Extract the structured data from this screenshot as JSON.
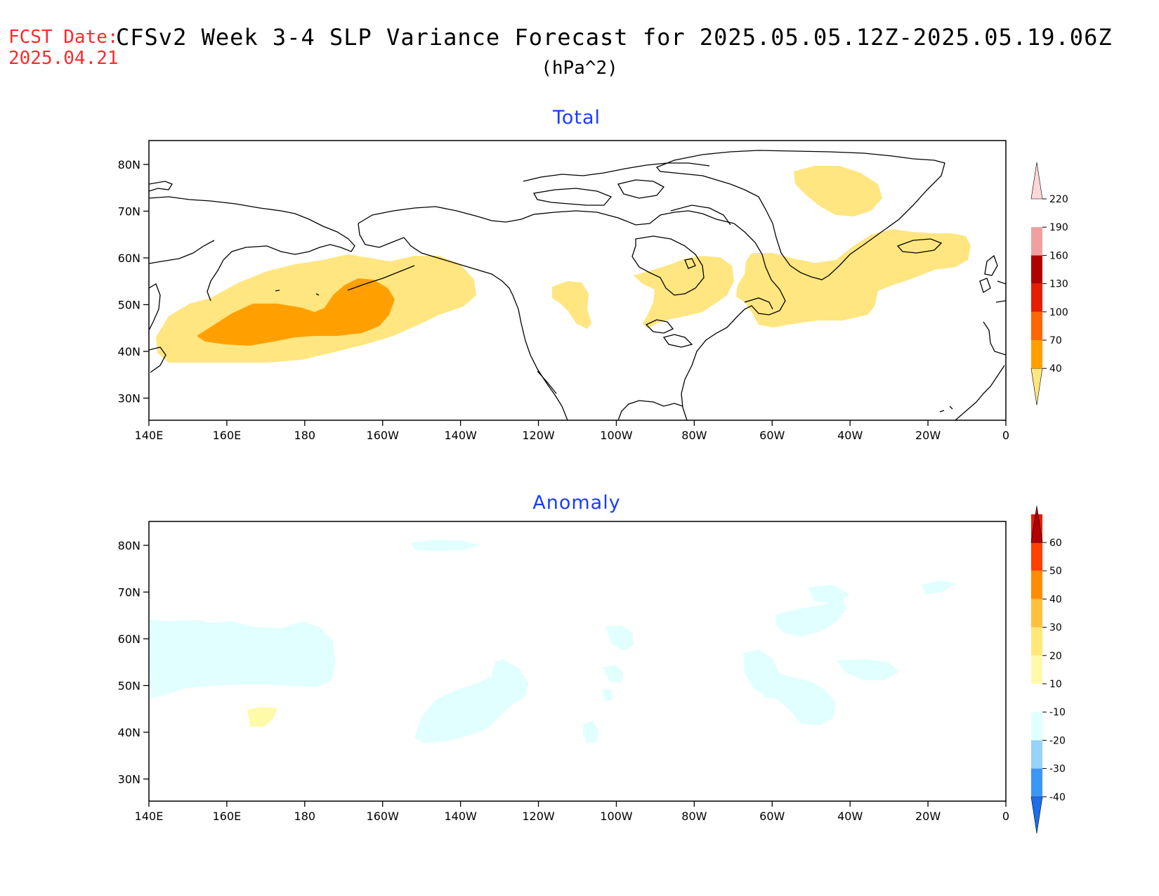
{
  "header": {
    "fcst_label": "FCST Date:",
    "fcst_date": "2025.04.21",
    "title": "CFSv2 Week 3-4 SLP Variance Forecast for 2025.05.05.12Z-2025.05.19.06Z",
    "units": "(hPa^2)"
  },
  "axes": {
    "lon_labels": [
      "140E",
      "160E",
      "180",
      "160W",
      "140W",
      "120W",
      "100W",
      "80W",
      "60W",
      "40W",
      "20W",
      "0"
    ],
    "lat_labels": [
      "80N",
      "70N",
      "60N",
      "50N",
      "40N",
      "30N"
    ]
  },
  "panels": [
    {
      "title": "Total",
      "colorbar": {
        "levels": [
          "40",
          "70",
          "100",
          "130",
          "160",
          "190",
          "220"
        ],
        "colors": [
          "#ffe680",
          "#ffa000",
          "#ff6600",
          "#e61e00",
          "#b00000",
          "#f0a0a0",
          "#ffd7d7"
        ]
      }
    },
    {
      "title": "Anomaly",
      "colorbar": {
        "levels": [
          "-40",
          "-30",
          "-20",
          "-10",
          "10",
          "20",
          "30",
          "40",
          "50",
          "60"
        ],
        "colors": [
          "#1e6eeb",
          "#3c96f5",
          "#96d2fa",
          "#e1ffff",
          "#ffffff",
          "#fffaaa",
          "#ffe878",
          "#ffc03c",
          "#ff8c00",
          "#ff4000",
          "#e61e00",
          "#b40000"
        ]
      }
    }
  ]
}
